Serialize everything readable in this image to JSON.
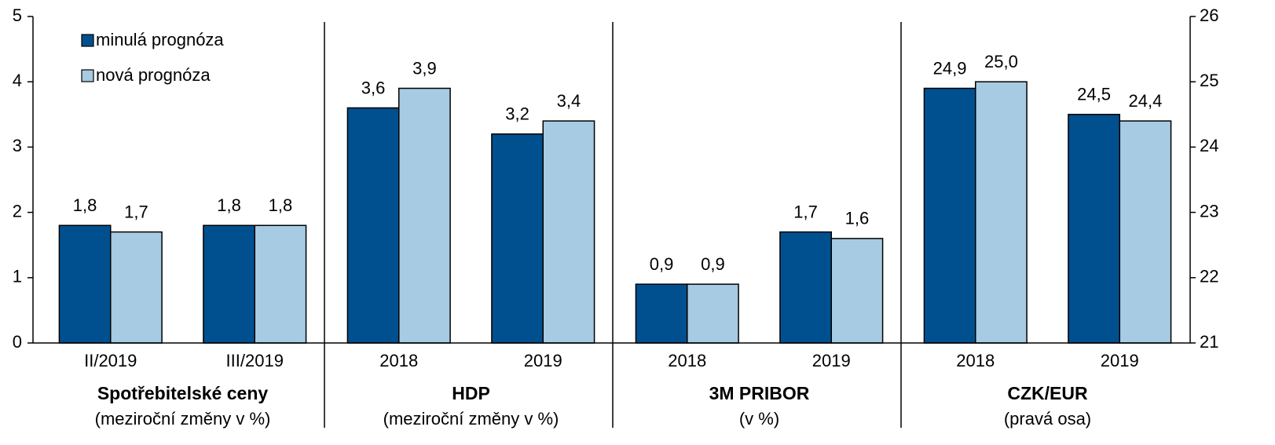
{
  "chart_data": {
    "type": "bar",
    "groups": [
      {
        "title": "Spotřebitelské ceny",
        "subtitle": "(meziroční změny v %)",
        "categories": [
          "II/2019",
          "III/2019"
        ]
      },
      {
        "title": "HDP",
        "subtitle": "(meziroční změny v %)",
        "categories": [
          "2018",
          "2019"
        ]
      },
      {
        "title": "3M PRIBOR",
        "subtitle": "(v %)",
        "categories": [
          "2018",
          "2019"
        ]
      },
      {
        "title": "CZK/EUR",
        "subtitle": "(pravá osa)",
        "categories": [
          "2018",
          "2019"
        ],
        "axis": "y2"
      }
    ],
    "series": [
      {
        "name": "minulá prognóza",
        "color": "#00508f",
        "values": [
          1.8,
          1.8,
          3.6,
          3.2,
          0.9,
          1.7,
          24.9,
          24.5
        ],
        "value_labels": [
          "1,8",
          "1,8",
          "3,6",
          "3,2",
          "0,9",
          "1,7",
          "24,9",
          "24,5"
        ]
      },
      {
        "name": "nová prognóza",
        "color": "#a6cbe3",
        "values": [
          1.7,
          1.8,
          3.9,
          3.4,
          0.9,
          1.6,
          25.0,
          24.4
        ],
        "value_labels": [
          "1,7",
          "1,8",
          "3,9",
          "3,4",
          "0,9",
          "1,6",
          "25,0",
          "24,4"
        ]
      }
    ],
    "ylim": [
      0,
      5
    ],
    "yticks": [
      0,
      1,
      2,
      3,
      4,
      5
    ],
    "y2lim": [
      21,
      26
    ],
    "y2ticks": [
      21,
      22,
      23,
      24,
      25,
      26
    ],
    "legend": "upper left"
  }
}
